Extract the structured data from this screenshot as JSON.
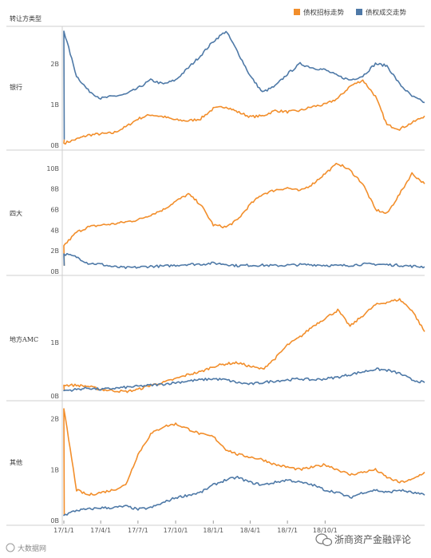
{
  "header": {
    "title": "转让方类型"
  },
  "legend": [
    {
      "label": "债权招标走势",
      "color": "#F28E2B"
    },
    {
      "label": "债权成交走势",
      "color": "#4E79A7"
    }
  ],
  "watermarks": {
    "right": "浙商资产金融评论",
    "left": "大数据网"
  },
  "chart_data": [
    {
      "type": "line",
      "panel": "银行",
      "ylim": [
        0,
        2.8
      ],
      "yticks": [
        {
          "value": 0,
          "label": "0B"
        },
        {
          "value": 1,
          "label": "1B"
        },
        {
          "value": 2,
          "label": "2B"
        }
      ],
      "series": [
        {
          "name": "债权招标走势",
          "color": "#F28E2B",
          "x": [
            "17/1/1",
            "17/2/1",
            "17/3/1",
            "17/4/1",
            "17/5/1",
            "17/6/1",
            "17/7/1",
            "17/8/1",
            "17/9/1",
            "17/10/1",
            "17/11/1",
            "17/12/1",
            "18/1/1",
            "18/2/1",
            "18/3/1",
            "18/4/1",
            "18/5/1",
            "18/6/1",
            "18/7/1",
            "18/8/1",
            "18/9/1",
            "18/10/1",
            "18/11/1",
            "18/12/1",
            "19/1/1",
            "19/2/1",
            "19/3/1",
            "19/4/1",
            "19/5/1",
            "19/6/1"
          ],
          "values": [
            0.05,
            0.15,
            0.25,
            0.28,
            0.3,
            0.45,
            0.65,
            0.75,
            0.7,
            0.62,
            0.6,
            0.65,
            0.9,
            0.95,
            0.82,
            0.7,
            0.72,
            0.85,
            0.82,
            0.85,
            0.95,
            1.0,
            1.15,
            1.45,
            1.6,
            1.2,
            0.5,
            0.4,
            0.55,
            0.72
          ]
        },
        {
          "name": "债权成交走势",
          "color": "#4E79A7",
          "x": [
            "17/1/1",
            "17/2/1",
            "17/3/1",
            "17/4/1",
            "17/5/1",
            "17/6/1",
            "17/7/1",
            "17/8/1",
            "17/9/1",
            "17/10/1",
            "17/11/1",
            "17/12/1",
            "18/1/1",
            "18/2/1",
            "18/3/1",
            "18/4/1",
            "18/5/1",
            "18/6/1",
            "18/7/1",
            "18/8/1",
            "18/9/1",
            "18/10/1",
            "18/11/1",
            "18/12/1",
            "19/1/1",
            "19/2/1",
            "19/3/1",
            "19/4/1",
            "19/5/1",
            "19/6/1"
          ],
          "values": [
            2.8,
            1.7,
            1.35,
            1.15,
            1.2,
            1.25,
            1.4,
            1.6,
            1.5,
            1.6,
            1.9,
            2.2,
            2.55,
            2.8,
            2.3,
            1.7,
            1.3,
            1.45,
            1.75,
            2.0,
            1.9,
            1.85,
            1.7,
            1.6,
            1.7,
            2.0,
            1.95,
            1.5,
            1.2,
            1.05
          ]
        }
      ]
    },
    {
      "type": "line",
      "panel": "四大",
      "ylim": [
        0,
        11
      ],
      "yticks": [
        {
          "value": 0,
          "label": "0B"
        },
        {
          "value": 2,
          "label": "2B"
        },
        {
          "value": 4,
          "label": "4B"
        },
        {
          "value": 6,
          "label": "6B"
        },
        {
          "value": 8,
          "label": "8B"
        },
        {
          "value": 10,
          "label": "10B"
        }
      ],
      "series": [
        {
          "name": "债权招标走势",
          "color": "#F28E2B",
          "x": [
            "17/1/1",
            "17/2/1",
            "17/3/1",
            "17/4/1",
            "17/5/1",
            "17/6/1",
            "17/7/1",
            "17/8/1",
            "17/9/1",
            "17/10/1",
            "17/11/1",
            "17/12/1",
            "18/1/1",
            "18/2/1",
            "18/3/1",
            "18/4/1",
            "18/5/1",
            "18/6/1",
            "18/7/1",
            "18/8/1",
            "18/9/1",
            "18/10/1",
            "18/11/1",
            "18/12/1",
            "19/1/1",
            "19/2/1",
            "19/3/1",
            "19/4/1",
            "19/5/1",
            "19/6/1"
          ],
          "values": [
            2.5,
            3.8,
            4.3,
            4.5,
            4.6,
            4.8,
            5.0,
            5.5,
            6.0,
            6.8,
            7.5,
            6.5,
            4.5,
            4.3,
            5.0,
            6.5,
            7.5,
            7.9,
            8.1,
            7.8,
            8.5,
            9.5,
            10.5,
            9.8,
            8.5,
            6.0,
            5.6,
            7.5,
            9.5,
            8.5
          ]
        },
        {
          "name": "债权成交走势",
          "color": "#4E79A7",
          "x": [
            "17/1/1",
            "17/2/1",
            "17/3/1",
            "17/4/1",
            "17/5/1",
            "17/6/1",
            "17/7/1",
            "17/8/1",
            "17/9/1",
            "17/10/1",
            "17/11/1",
            "17/12/1",
            "18/1/1",
            "18/2/1",
            "18/3/1",
            "18/4/1",
            "18/5/1",
            "18/6/1",
            "18/7/1",
            "18/8/1",
            "18/9/1",
            "18/10/1",
            "18/11/1",
            "18/12/1",
            "19/1/1",
            "19/2/1",
            "19/3/1",
            "19/4/1",
            "19/5/1",
            "19/6/1"
          ],
          "values": [
            1.7,
            1.4,
            0.8,
            0.7,
            0.45,
            0.35,
            0.4,
            0.5,
            0.5,
            0.6,
            0.7,
            0.7,
            0.8,
            0.7,
            0.55,
            0.6,
            0.6,
            0.55,
            0.6,
            0.65,
            0.65,
            0.6,
            0.55,
            0.6,
            0.7,
            0.7,
            0.65,
            0.6,
            0.5,
            0.45
          ]
        }
      ]
    },
    {
      "type": "line",
      "panel": "地方AMC",
      "ylim": [
        0,
        2.1
      ],
      "yticks": [
        {
          "value": 0,
          "label": "0B"
        },
        {
          "value": 1,
          "label": "1B"
        }
      ],
      "series": [
        {
          "name": "债权招标走势",
          "color": "#F28E2B",
          "x": [
            "17/1/1",
            "17/2/1",
            "17/3/1",
            "17/4/1",
            "17/5/1",
            "17/6/1",
            "17/7/1",
            "17/8/1",
            "17/9/1",
            "17/10/1",
            "17/11/1",
            "17/12/1",
            "18/1/1",
            "18/2/1",
            "18/3/1",
            "18/4/1",
            "18/5/1",
            "18/6/1",
            "18/7/1",
            "18/8/1",
            "18/9/1",
            "18/10/1",
            "18/11/1",
            "18/12/1",
            "19/1/1",
            "19/2/1",
            "19/3/1",
            "19/4/1",
            "19/5/1",
            "19/6/1"
          ],
          "values": [
            0.2,
            0.2,
            0.18,
            0.12,
            0.1,
            0.08,
            0.12,
            0.2,
            0.25,
            0.32,
            0.4,
            0.45,
            0.55,
            0.6,
            0.62,
            0.55,
            0.5,
            0.7,
            0.95,
            1.1,
            1.3,
            1.45,
            1.6,
            1.3,
            1.5,
            1.7,
            1.75,
            1.8,
            1.6,
            1.2
          ]
        },
        {
          "name": "债权成交走势",
          "color": "#4E79A7",
          "x": [
            "17/1/1",
            "17/2/1",
            "17/3/1",
            "17/4/1",
            "17/5/1",
            "17/6/1",
            "17/7/1",
            "17/8/1",
            "17/9/1",
            "17/10/1",
            "17/11/1",
            "17/12/1",
            "18/1/1",
            "18/2/1",
            "18/3/1",
            "18/4/1",
            "18/5/1",
            "18/6/1",
            "18/7/1",
            "18/8/1",
            "18/9/1",
            "18/10/1",
            "18/11/1",
            "18/12/1",
            "19/1/1",
            "19/2/1",
            "19/3/1",
            "19/4/1",
            "19/5/1",
            "19/6/1"
          ],
          "values": [
            0.1,
            0.12,
            0.15,
            0.12,
            0.14,
            0.16,
            0.18,
            0.2,
            0.22,
            0.25,
            0.28,
            0.3,
            0.32,
            0.3,
            0.25,
            0.22,
            0.25,
            0.28,
            0.3,
            0.32,
            0.3,
            0.32,
            0.35,
            0.4,
            0.45,
            0.5,
            0.48,
            0.42,
            0.3,
            0.25
          ]
        }
      ]
    },
    {
      "type": "line",
      "panel": "其他",
      "ylim": [
        0,
        2.2
      ],
      "yticks": [
        {
          "value": 0,
          "label": "0B"
        },
        {
          "value": 1,
          "label": "1B"
        },
        {
          "value": 2,
          "label": "2B"
        }
      ],
      "series": [
        {
          "name": "债权招标走势",
          "color": "#F28E2B",
          "x": [
            "17/1/1",
            "17/2/1",
            "17/3/1",
            "17/4/1",
            "17/5/1",
            "17/6/1",
            "17/7/1",
            "17/8/1",
            "17/9/1",
            "17/10/1",
            "17/11/1",
            "17/12/1",
            "18/1/1",
            "18/2/1",
            "18/3/1",
            "18/4/1",
            "18/5/1",
            "18/6/1",
            "18/7/1",
            "18/8/1",
            "18/9/1",
            "18/10/1",
            "18/11/1",
            "18/12/1",
            "19/1/1",
            "19/2/1",
            "19/3/1",
            "19/4/1",
            "19/5/1",
            "19/6/1"
          ],
          "values": [
            2.2,
            0.6,
            0.5,
            0.55,
            0.6,
            0.7,
            1.3,
            1.7,
            1.85,
            1.9,
            1.8,
            1.7,
            1.65,
            1.4,
            1.3,
            1.25,
            1.2,
            1.1,
            1.05,
            1.0,
            1.05,
            1.1,
            1.0,
            0.9,
            0.95,
            1.0,
            0.85,
            0.75,
            0.8,
            0.95
          ]
        },
        {
          "name": "债权成交走势",
          "color": "#4E79A7",
          "x": [
            "17/1/1",
            "17/2/1",
            "17/3/1",
            "17/4/1",
            "17/5/1",
            "17/6/1",
            "17/7/1",
            "17/8/1",
            "17/9/1",
            "17/10/1",
            "17/11/1",
            "17/12/1",
            "18/1/1",
            "18/2/1",
            "18/3/1",
            "18/4/1",
            "18/5/1",
            "18/6/1",
            "18/7/1",
            "18/8/1",
            "18/9/1",
            "18/10/1",
            "18/11/1",
            "18/12/1",
            "19/1/1",
            "19/2/1",
            "19/3/1",
            "19/4/1",
            "19/5/1",
            "19/6/1"
          ],
          "values": [
            0.1,
            0.2,
            0.22,
            0.25,
            0.25,
            0.28,
            0.22,
            0.25,
            0.35,
            0.45,
            0.5,
            0.55,
            0.7,
            0.8,
            0.85,
            0.75,
            0.7,
            0.75,
            0.8,
            0.75,
            0.7,
            0.6,
            0.55,
            0.45,
            0.55,
            0.6,
            0.55,
            0.6,
            0.55,
            0.5
          ]
        }
      ]
    }
  ],
  "xaxis": {
    "ticks": [
      "17/1/1",
      "17/4/1",
      "17/7/1",
      "17/10/1",
      "18/1/1",
      "18/4/1",
      "18/7/1",
      "18/10/1"
    ]
  }
}
